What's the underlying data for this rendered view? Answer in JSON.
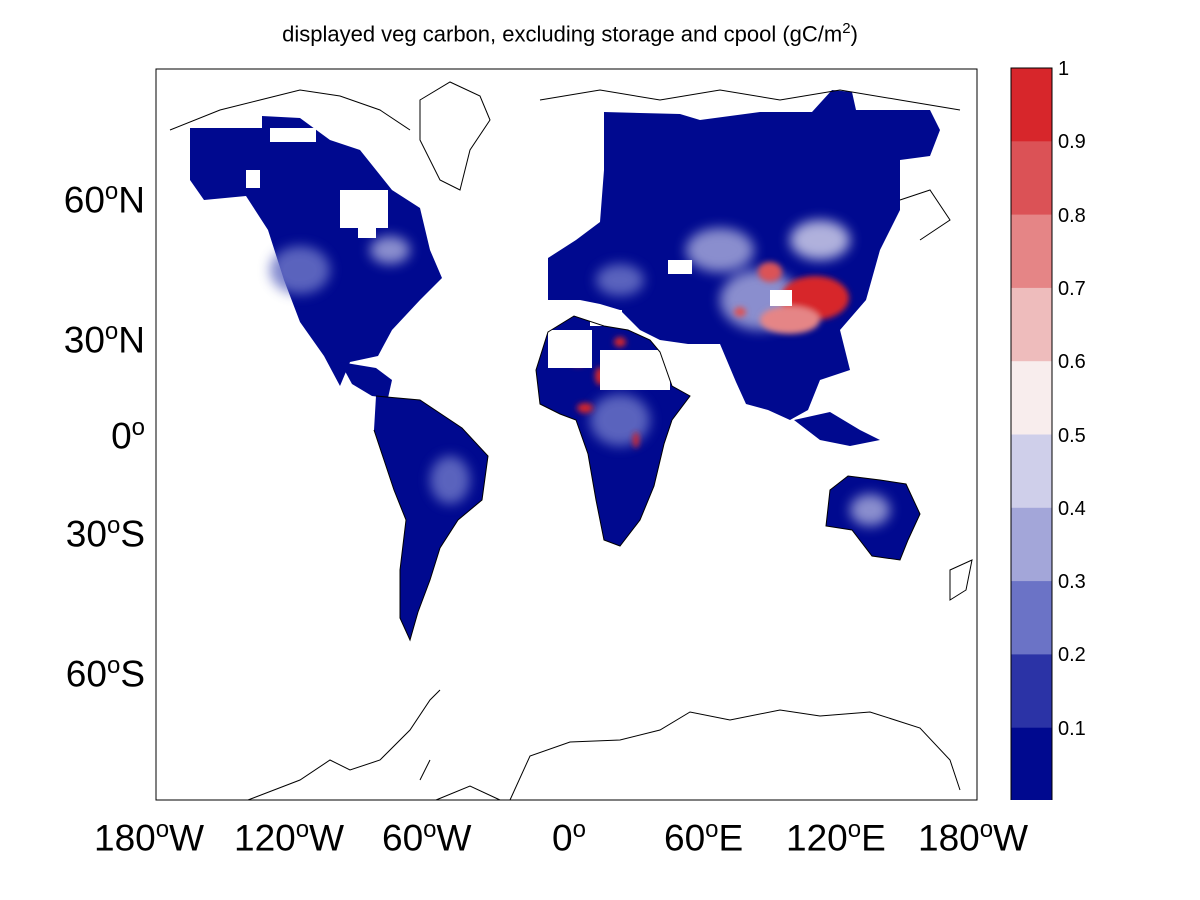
{
  "title": {
    "text": "displayed veg carbon, excluding storage and cpool (gC/m",
    "sup": "2",
    "close": ")"
  },
  "axes": {
    "y_ticks": [
      {
        "deg": "60",
        "hemi": "N"
      },
      {
        "deg": "30",
        "hemi": "N"
      },
      {
        "deg": "0",
        "hemi": ""
      },
      {
        "deg": "30",
        "hemi": "S"
      },
      {
        "deg": "60",
        "hemi": "S"
      }
    ],
    "x_ticks": [
      {
        "deg": "180",
        "hemi": "W"
      },
      {
        "deg": "120",
        "hemi": "W"
      },
      {
        "deg": "60",
        "hemi": "W"
      },
      {
        "deg": "0",
        "hemi": ""
      },
      {
        "deg": "60",
        "hemi": "E"
      },
      {
        "deg": "120",
        "hemi": "E"
      },
      {
        "deg": "180",
        "hemi": "W"
      }
    ]
  },
  "colorbar": {
    "labels": [
      "1",
      "0.9",
      "0.8",
      "0.7",
      "0.6",
      "0.5",
      "0.4",
      "0.3",
      "0.2",
      "0.1"
    ],
    "colors": [
      "#d7262b",
      "#db5256",
      "#e58586",
      "#eebcbc",
      "#f8eded",
      "#cfcfea",
      "#a3a6d9",
      "#6b73c6",
      "#2b33a6",
      "#00098f"
    ]
  },
  "colors": {
    "background": "#ffffff",
    "land_low": "#00098f",
    "land_mid": "#2b33a6",
    "land_light": "#a3a6d9",
    "high": "#d7262b",
    "coast": "#000000"
  }
}
